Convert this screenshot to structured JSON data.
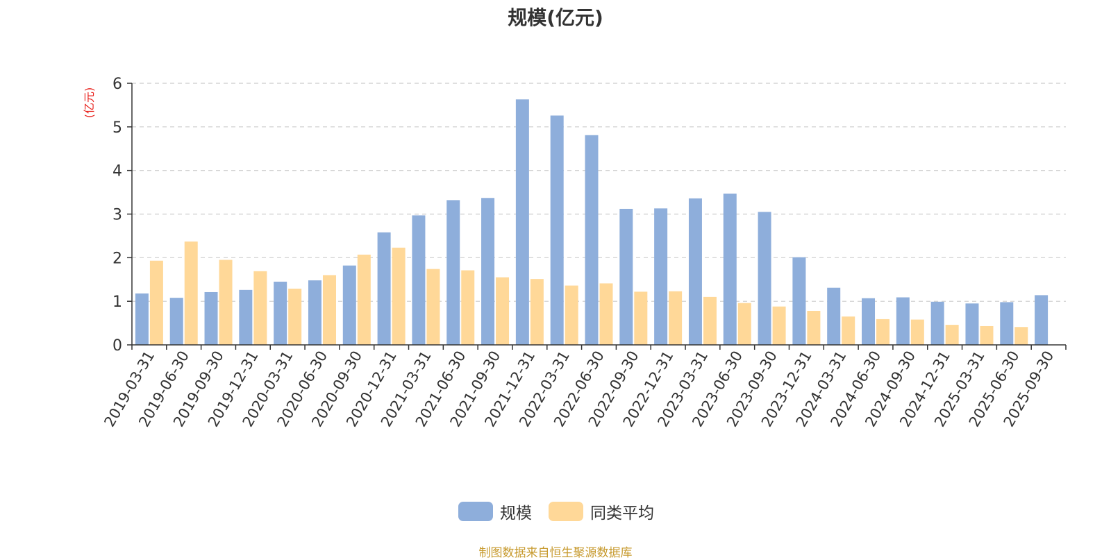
{
  "colors": {
    "series_1": "#8eaedb",
    "series_2": "#ffd898",
    "ylabel": "#e8211c",
    "axis": "#333333",
    "grid": "#cccccc",
    "source": "#c79a2e"
  },
  "source_text": "制图数据来自恒生聚源数据库",
  "chart_data": {
    "type": "bar",
    "title": "规模(亿元)",
    "ylabel": "(亿元)",
    "xlabel": "",
    "ylim": [
      0,
      6
    ],
    "yticks": [
      0,
      1,
      2,
      3,
      4,
      5,
      6
    ],
    "grid": true,
    "legend_position": "bottom-center",
    "categories": [
      "2019-03-31",
      "2019-06-30",
      "2019-09-30",
      "2019-12-31",
      "2020-03-31",
      "2020-06-30",
      "2020-09-30",
      "2020-12-31",
      "2021-03-31",
      "2021-06-30",
      "2021-09-30",
      "2021-12-31",
      "2022-03-31",
      "2022-06-30",
      "2022-09-30",
      "2022-12-31",
      "2023-03-31",
      "2023-06-30",
      "2023-09-30",
      "2023-12-31",
      "2024-03-31",
      "2024-06-30",
      "2024-09-30",
      "2024-12-31",
      "2025-03-31",
      "2025-06-30",
      "2025-09-30"
    ],
    "series": [
      {
        "name": "规模",
        "values": [
          1.18,
          1.08,
          1.21,
          1.26,
          1.45,
          1.48,
          1.82,
          2.58,
          2.97,
          3.32,
          3.37,
          5.63,
          5.26,
          4.81,
          3.12,
          3.13,
          3.36,
          3.47,
          3.05,
          2.01,
          1.31,
          1.07,
          1.09,
          0.99,
          0.95,
          0.98,
          1.14
        ]
      },
      {
        "name": "同类平均",
        "values": [
          1.93,
          2.37,
          1.95,
          1.69,
          1.29,
          1.6,
          2.07,
          2.23,
          1.74,
          1.71,
          1.55,
          1.51,
          1.36,
          1.41,
          1.22,
          1.23,
          1.1,
          0.96,
          0.88,
          0.78,
          0.65,
          0.59,
          0.58,
          0.46,
          0.43,
          0.41,
          null
        ]
      }
    ]
  }
}
